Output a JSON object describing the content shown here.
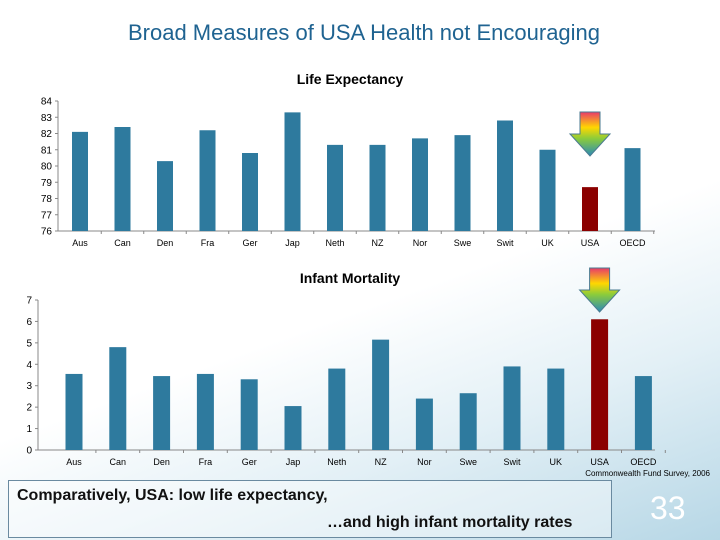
{
  "title": "Broad Measures of USA Health not Encouraging",
  "source": "Commonwealth Fund Survey, 2006",
  "note": {
    "line1": "Comparatively, USA: low life expectancy,",
    "line2": "…and high infant mortality rates"
  },
  "page_number": "33",
  "colors": {
    "bar": "#2e7a9e",
    "highlight": "#8b0000",
    "title": "#1f6391"
  },
  "chart_data": [
    {
      "type": "bar",
      "title": "Life Expectancy",
      "categories": [
        "Aus",
        "Can",
        "Den",
        "Fra",
        "Ger",
        "Jap",
        "Neth",
        "NZ",
        "Nor",
        "Swe",
        "Swit",
        "UK",
        "USA",
        "OECD"
      ],
      "values": [
        82.1,
        82.4,
        80.3,
        82.2,
        80.8,
        83.3,
        81.3,
        81.3,
        81.7,
        81.9,
        82.8,
        81.0,
        78.7,
        81.1
      ],
      "highlight": "USA",
      "ylim": [
        76,
        84
      ],
      "yticks": [
        76,
        77,
        78,
        79,
        80,
        81,
        82,
        83,
        84
      ],
      "grid": false
    },
    {
      "type": "bar",
      "title": "Infant Mortality",
      "categories": [
        "Aus",
        "Can",
        "Den",
        "Fra",
        "Ger",
        "Jap",
        "Neth",
        "NZ",
        "Nor",
        "Swe",
        "Swit",
        "UK",
        "USA",
        "OECD"
      ],
      "values": [
        3.55,
        4.8,
        3.45,
        3.55,
        3.3,
        2.05,
        3.8,
        5.15,
        2.4,
        2.65,
        3.9,
        3.8,
        6.1,
        3.45
      ],
      "highlight": "USA",
      "ylim": [
        0,
        7
      ],
      "yticks": [
        0,
        1,
        2,
        3,
        4,
        5,
        6,
        7
      ],
      "grid": false
    }
  ]
}
